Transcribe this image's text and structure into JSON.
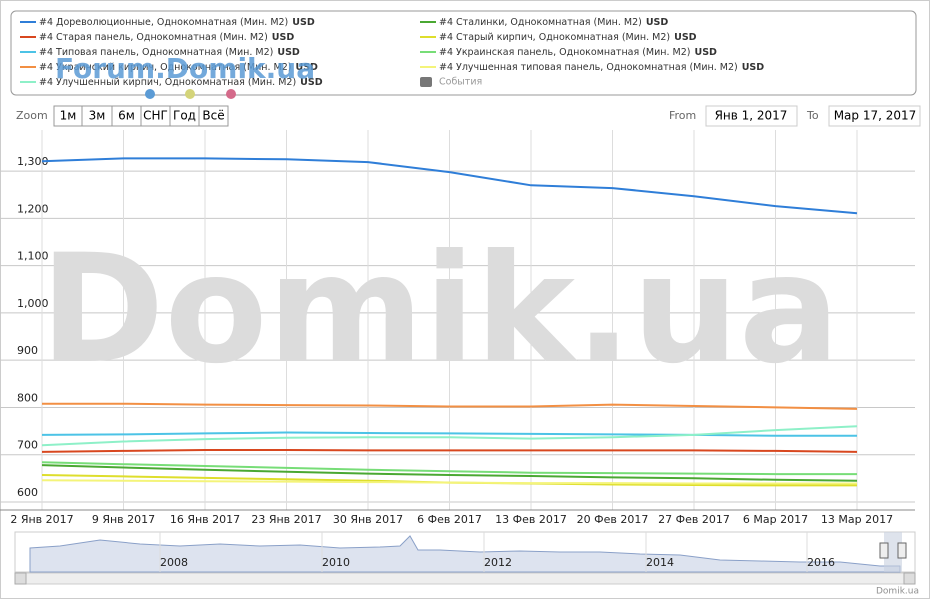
{
  "chart_data": {
    "type": "line",
    "currency": "USD",
    "events_label": "События",
    "watermark": "Domik.ua",
    "forum_watermark": "Forum.Domik.ua",
    "zoom_label": "Zoom",
    "zoom_buttons": [
      "1м",
      "3м",
      "6м",
      "СНГ",
      "Год",
      "Всё"
    ],
    "from_label": "From",
    "from_date": "Янв 1, 2017",
    "to_label": "To",
    "to_date": "Мар 17, 2017",
    "navigator_years": [
      "2008",
      "2010",
      "2012",
      "2014",
      "2016"
    ],
    "credits": "Domik.ua",
    "x": [
      "2 Янв 2017",
      "9 Янв 2017",
      "16 Янв 2017",
      "23 Янв 2017",
      "30 Янв 2017",
      "6 Фев 2017",
      "13 Фев 2017",
      "20 Фев 2017",
      "27 Фев 2017",
      "6 Мар 2017",
      "13 Мар 2017"
    ],
    "ylim": [
      583,
      1387
    ],
    "yticks": [
      600,
      700,
      800,
      900,
      {
        "value": 1000,
        "label": "1,000"
      },
      {
        "value": 1100,
        "label": "1,100"
      },
      {
        "value": 1200,
        "label": "1,200"
      },
      {
        "value": 1300,
        "label": "1,300"
      }
    ],
    "grid": true,
    "series": [
      {
        "name": "#4 Дореволюционные, Однокомнатная (Мин. М2)",
        "color": "#2f7ed8",
        "values": [
          1321,
          1327,
          1327,
          1325,
          1319,
          1298,
          1270,
          1264,
          1247,
          1226,
          1211
        ]
      },
      {
        "name": "#4 Старая панель, Однокомнатная (Мин. М2)",
        "color": "#d8471f",
        "values": [
          706,
          708,
          710,
          710,
          709,
          709,
          709,
          709,
          709,
          708,
          706
        ]
      },
      {
        "name": "#4 Типовая панель, Однокомнатная (Мин. М2)",
        "color": "#4cc3e6",
        "values": [
          742,
          743,
          745,
          747,
          746,
          745,
          744,
          743,
          742,
          740,
          740
        ]
      },
      {
        "name": "#4 Украинский кирпич, Однокомнатная (Мин. М2)",
        "color": "#f28f43",
        "values": [
          808,
          808,
          806,
          805,
          804,
          802,
          802,
          806,
          803,
          800,
          797
        ]
      },
      {
        "name": "#4 Улучшенный кирпич, Однокомнатная (Мин. М2)",
        "color": "#8ef0c8",
        "values": [
          720,
          728,
          733,
          736,
          737,
          737,
          734,
          737,
          742,
          752,
          760
        ]
      },
      {
        "name": "#4 Сталинки, Однокомнатная (Мин. М2)",
        "color": "#4aa832",
        "values": [
          678,
          673,
          668,
          664,
          660,
          657,
          655,
          652,
          650,
          647,
          645
        ]
      },
      {
        "name": "#4 Старый кирпич, Однокомнатная (Мин. М2)",
        "color": "#dede2c",
        "values": [
          657,
          654,
          651,
          648,
          645,
          641,
          639,
          637,
          636,
          635,
          635
        ]
      },
      {
        "name": "#4 Украинская панель, Однокомнатная (Мин. М2)",
        "color": "#77dd77",
        "values": [
          684,
          680,
          676,
          672,
          668,
          665,
          662,
          661,
          660,
          659,
          659
        ]
      },
      {
        "name": "#4 Улучшенная типовая панель, Однокомнатная (Мин. М2)",
        "color": "#f4f47a",
        "values": [
          646,
          645,
          644,
          643,
          642,
          641,
          640,
          640,
          639,
          639,
          639
        ]
      }
    ]
  }
}
